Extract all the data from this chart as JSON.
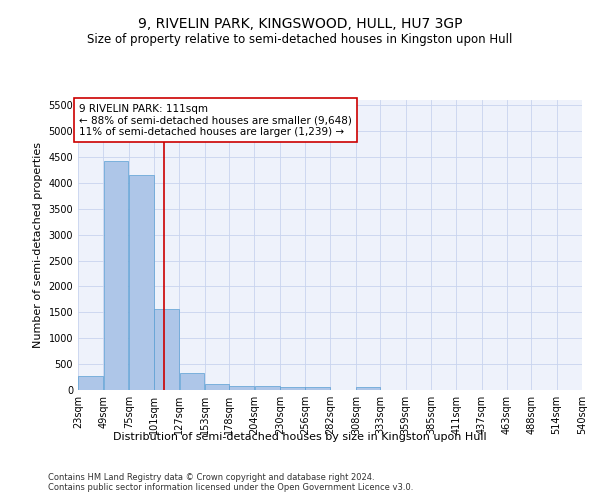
{
  "title": "9, RIVELIN PARK, KINGSWOOD, HULL, HU7 3GP",
  "subtitle": "Size of property relative to semi-detached houses in Kingston upon Hull",
  "xlabel": "Distribution of semi-detached houses by size in Kingston upon Hull",
  "ylabel": "Number of semi-detached properties",
  "footnote1": "Contains HM Land Registry data © Crown copyright and database right 2024.",
  "footnote2": "Contains public sector information licensed under the Open Government Licence v3.0.",
  "annotation_title": "9 RIVELIN PARK: 111sqm",
  "annotation_line1": "← 88% of semi-detached houses are smaller (9,648)",
  "annotation_line2": "11% of semi-detached houses are larger (1,239) →",
  "property_size": 111,
  "bin_edges": [
    23,
    49,
    75,
    101,
    127,
    153,
    178,
    204,
    230,
    256,
    282,
    308,
    333,
    359,
    385,
    411,
    437,
    463,
    488,
    514,
    540
  ],
  "bar_heights": [
    280,
    4430,
    4160,
    1560,
    320,
    120,
    80,
    70,
    65,
    55,
    0,
    60,
    0,
    0,
    0,
    0,
    0,
    0,
    0,
    0
  ],
  "bar_color": "#aec6e8",
  "bar_edge_color": "#5a9fd4",
  "vline_color": "#cc0000",
  "vline_x": 111,
  "ylim": [
    0,
    5600
  ],
  "yticks": [
    0,
    500,
    1000,
    1500,
    2000,
    2500,
    3000,
    3500,
    4000,
    4500,
    5000,
    5500
  ],
  "bg_color": "#eef2fb",
  "annotation_box_color": "#ffffff",
  "annotation_box_edge": "#cc0000",
  "title_fontsize": 10,
  "subtitle_fontsize": 8.5,
  "axis_label_fontsize": 8,
  "tick_fontsize": 7,
  "annotation_fontsize": 7.5,
  "footnote_fontsize": 6
}
